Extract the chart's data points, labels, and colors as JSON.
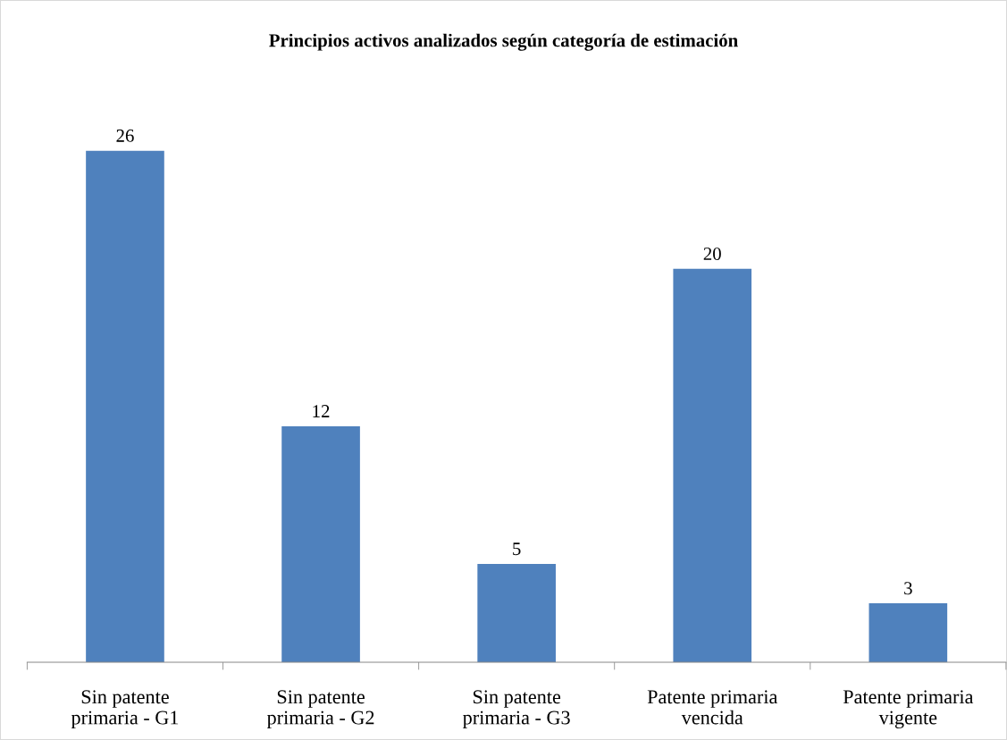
{
  "chart_data": {
    "type": "bar",
    "title": "Principios activos analizados según categoría de estimación",
    "categories": [
      "Sin patente\nprimaria - G1",
      "Sin patente\nprimaria - G2",
      "Sin patente\nprimaria - G3",
      "Patente primaria\nvencida",
      "Patente primaria\nvigente"
    ],
    "values": [
      26,
      12,
      5,
      20,
      3
    ],
    "color": "#4f81bd",
    "data_labels": true,
    "grid": false,
    "legend": false
  }
}
